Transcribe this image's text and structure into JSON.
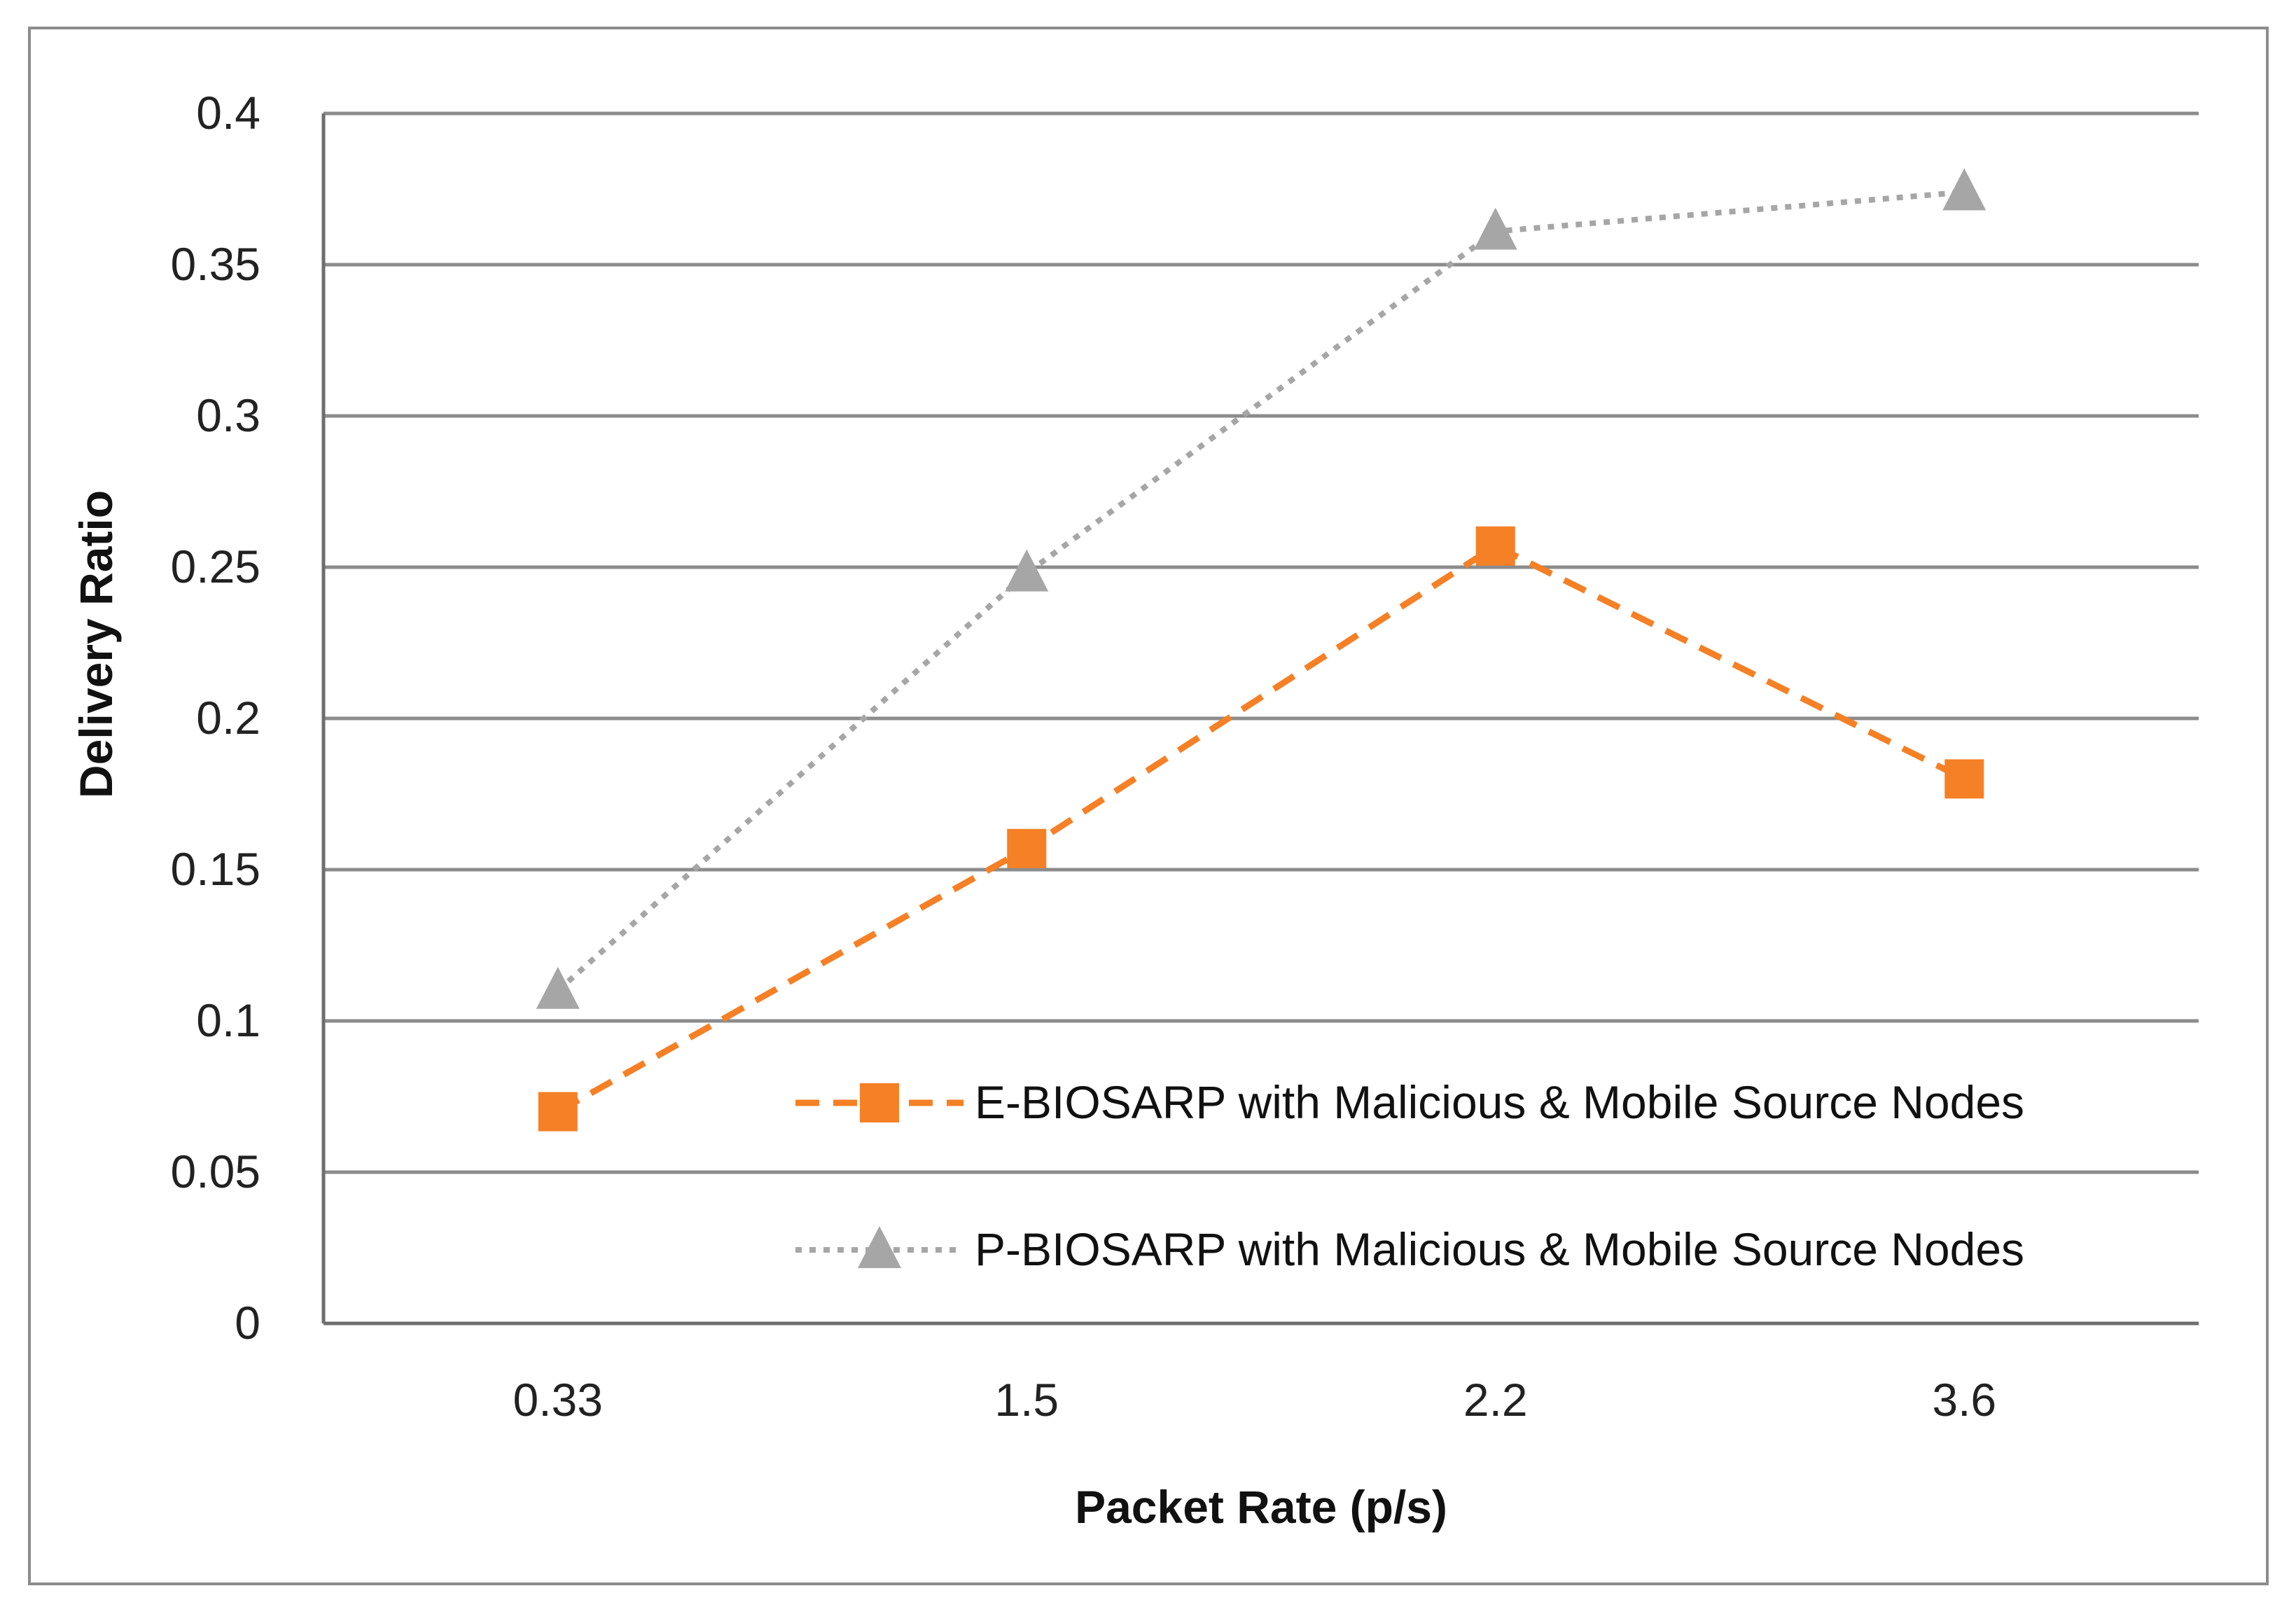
{
  "chart_data": {
    "type": "line",
    "title": "",
    "xlabel": "Packet Rate (p/s)",
    "ylabel": "Delivery Ratio",
    "categories": [
      "0.33",
      "1.5",
      "2.2",
      "3.6"
    ],
    "ylim": [
      0,
      0.4
    ],
    "yticks": [
      0,
      0.05,
      0.1,
      0.15,
      0.2,
      0.25,
      0.3,
      0.35,
      0.4
    ],
    "ytick_labels": [
      "0",
      "0.05",
      "0.1",
      "0.15",
      "0.2",
      "0.25",
      "0.3",
      "0.35",
      "0.4"
    ],
    "grid": true,
    "legend_position": "bottom-right",
    "series": [
      {
        "name": "E-BIOSARP with Malicious & Mobile Source Nodes",
        "values": [
          0.07,
          0.157,
          0.257,
          0.18
        ],
        "color": "#F58025",
        "line_style": "dashed",
        "marker": "square"
      },
      {
        "name": "P-BIOSARP with Malicious & Mobile Source Nodes",
        "values": [
          0.11,
          0.248,
          0.361,
          0.374
        ],
        "color": "#A6A6A6",
        "line_style": "dotted",
        "marker": "triangle"
      }
    ]
  }
}
